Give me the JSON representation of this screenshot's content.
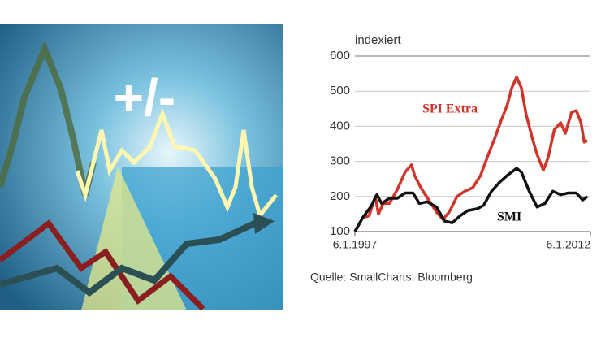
{
  "illustration": {
    "text": "+/-"
  },
  "chart_data": {
    "type": "line",
    "y_label": "indexiert",
    "source": "Quelle: SmallCharts, Bloomberg",
    "xlim": [
      1997,
      2012
    ],
    "ylim": [
      100,
      600
    ],
    "xticks": [
      {
        "value": 1997,
        "label": "6.1.1997"
      },
      {
        "value": 2012,
        "label": "6.1.2012"
      }
    ],
    "yticks": [
      100,
      200,
      300,
      400,
      500,
      600
    ],
    "grid": true,
    "series": [
      {
        "name": "SPI Extra",
        "color": "#d0352b",
        "x": [
          1997.0,
          1997.5,
          1997.9,
          1998.3,
          1998.5,
          1998.8,
          1999.2,
          1999.7,
          2000.2,
          2000.6,
          2000.8,
          2001.2,
          2001.7,
          2002.2,
          2002.6,
          2003.0,
          2003.5,
          2004.0,
          2004.5,
          2005.0,
          2005.5,
          2005.9,
          2006.3,
          2006.7,
          2007.0,
          2007.3,
          2007.6,
          2007.9,
          2008.3,
          2008.6,
          2009.0,
          2009.3,
          2009.7,
          2010.1,
          2010.4,
          2010.8,
          2011.1,
          2011.4,
          2011.6,
          2011.8
        ],
        "values": [
          100,
          140,
          145,
          200,
          150,
          180,
          180,
          220,
          270,
          290,
          260,
          225,
          190,
          155,
          135,
          155,
          200,
          215,
          225,
          260,
          320,
          365,
          415,
          460,
          510,
          540,
          510,
          435,
          365,
          320,
          275,
          310,
          390,
          410,
          380,
          440,
          445,
          410,
          355,
          360
        ]
      },
      {
        "name": "SMI",
        "color": "#111111",
        "x": [
          1997.0,
          1997.5,
          1998.0,
          1998.4,
          1998.7,
          1999.2,
          1999.7,
          2000.2,
          2000.7,
          2001.1,
          2001.6,
          2002.2,
          2002.7,
          2003.2,
          2003.7,
          2004.2,
          2004.8,
          2005.2,
          2005.7,
          2006.2,
          2006.7,
          2007.3,
          2007.6,
          2008.1,
          2008.6,
          2009.1,
          2009.6,
          2010.1,
          2010.6,
          2011.1,
          2011.5,
          2011.8
        ],
        "values": [
          100,
          140,
          170,
          205,
          180,
          195,
          195,
          210,
          210,
          180,
          185,
          170,
          130,
          125,
          145,
          160,
          165,
          175,
          215,
          240,
          260,
          280,
          270,
          215,
          170,
          180,
          215,
          205,
          210,
          210,
          190,
          200
        ]
      }
    ]
  }
}
